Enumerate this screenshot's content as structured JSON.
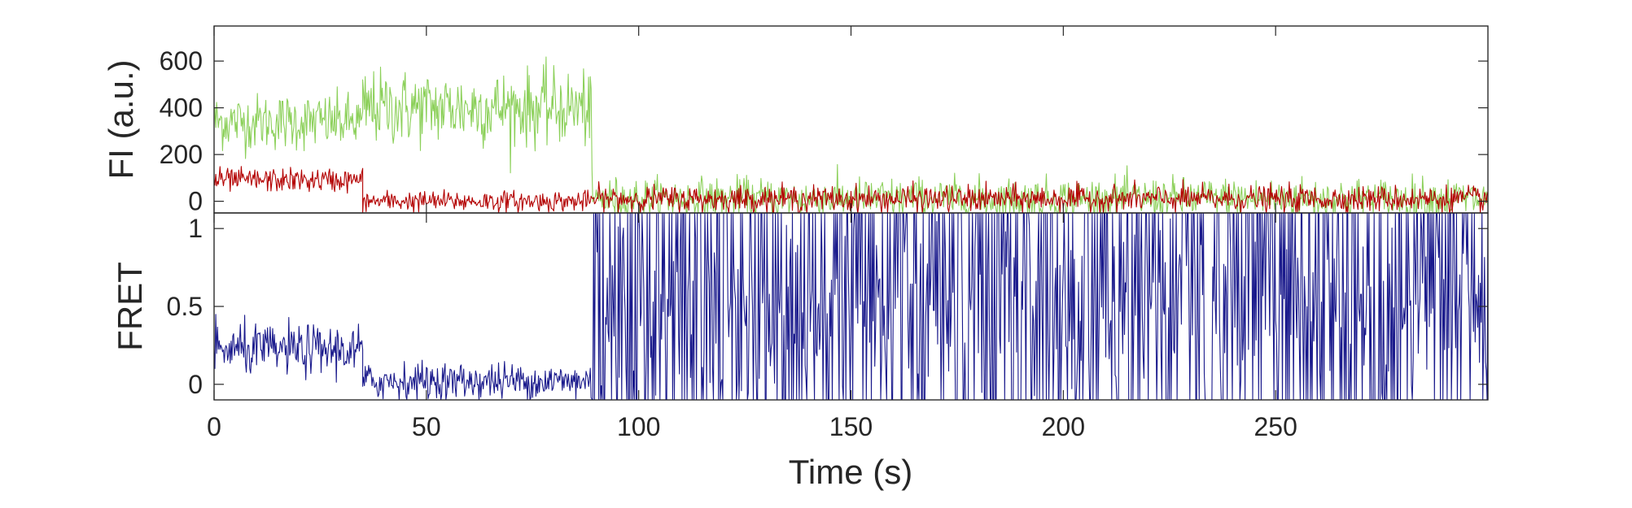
{
  "chart_data": [
    {
      "panel": "top",
      "type": "line",
      "xlabel": "",
      "ylabel": "FI (a.u.)",
      "xlim": [
        0,
        300
      ],
      "ylim": [
        -50,
        750
      ],
      "xticks": [
        0,
        50,
        100,
        150,
        200,
        250
      ],
      "yticks": [
        0,
        200,
        400,
        600
      ],
      "ytick_labels": [
        "0",
        "200",
        "400",
        "600"
      ],
      "grid": false,
      "series": [
        {
          "color": "#8cd05a",
          "segments": [
            {
              "x_start": 0,
              "x_end": 35,
              "mean": 340,
              "noise": 60
            },
            {
              "x_start": 35,
              "x_end": 89,
              "mean": 400,
              "noise": 80
            },
            {
              "x_start": 89,
              "x_end": 300,
              "mean": 10,
              "noise": 45
            }
          ]
        },
        {
          "color": "#b30000",
          "segments": [
            {
              "x_start": 0,
              "x_end": 35,
              "mean": 90,
              "noise": 25
            },
            {
              "x_start": 35,
              "x_end": 89,
              "mean": 0,
              "noise": 22
            },
            {
              "x_start": 89,
              "x_end": 300,
              "mean": 10,
              "noise": 28
            }
          ]
        }
      ]
    },
    {
      "panel": "bottom",
      "type": "line",
      "xlabel": "Time (s)",
      "ylabel": "FRET",
      "xlim": [
        0,
        300
      ],
      "ylim": [
        -0.1,
        1.1
      ],
      "xticks": [
        0,
        50,
        100,
        150,
        200,
        250
      ],
      "xtick_labels": [
        "0",
        "50",
        "100",
        "150",
        "200",
        "250"
      ],
      "yticks": [
        0,
        0.5,
        1
      ],
      "ytick_labels": [
        "0",
        "0.5",
        "1"
      ],
      "grid": false,
      "series": [
        {
          "color": "#1a1a8c",
          "segments": [
            {
              "x_start": 0,
              "x_end": 35,
              "mean": 0.22,
              "noise": 0.08
            },
            {
              "x_start": 35,
              "x_end": 89,
              "mean": 0.02,
              "noise": 0.06
            },
            {
              "x_start": 89,
              "x_end": 300,
              "mean": 0.5,
              "noise": 0.6
            }
          ]
        }
      ]
    }
  ]
}
